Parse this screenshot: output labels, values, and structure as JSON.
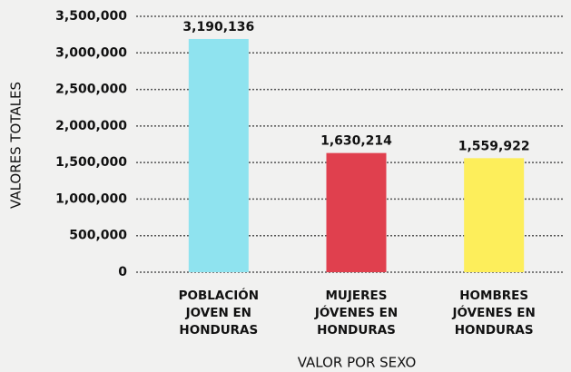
{
  "chart_data": {
    "type": "bar",
    "x_label": "VALOR POR SEXO",
    "y_label": "VALORES TOTALES",
    "categories": [
      "POBLACIÓN JOVEN EN HONDURAS",
      "MUJERES JÓVENES EN HONDURAS",
      "HOMBRES JÓVENES EN HONDURAS"
    ],
    "values": [
      3190136,
      1630214,
      1559922
    ],
    "value_labels": [
      "3,190,136",
      "1,630,214",
      "1,559,922"
    ],
    "colors": [
      "#8fe3ef",
      "#e0404e",
      "#fdee5b"
    ],
    "ylim": [
      0,
      3500000
    ],
    "yticks": [
      0,
      {
        "value": 500000,
        "label": "500,000"
      },
      {
        "value": 1000000,
        "label": "1,000,000"
      },
      {
        "value": 1500000,
        "label": "1,500,000"
      },
      {
        "value": 2000000,
        "label": "2,000,000"
      },
      {
        "value": 2500000,
        "label": "2,500,000"
      },
      {
        "value": 3000000,
        "label": "3,000,000"
      },
      {
        "value": 3500000,
        "label": "3,500,000"
      }
    ],
    "grid": true
  }
}
